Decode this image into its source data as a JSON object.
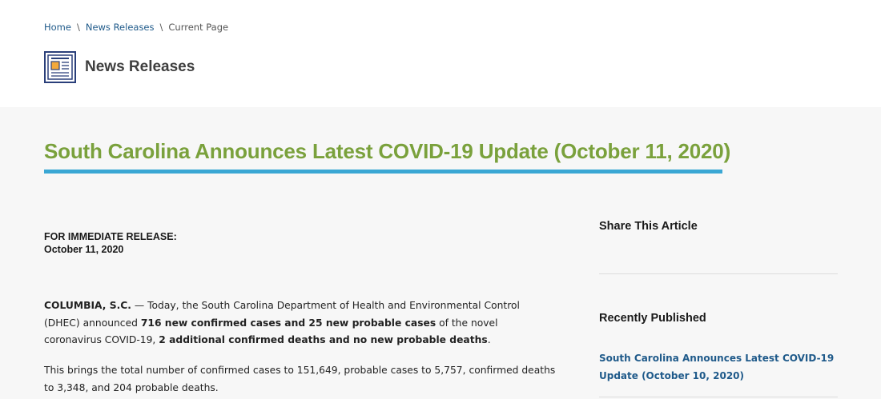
{
  "breadcrumb": {
    "home": "Home",
    "separator": "\\",
    "news_releases": "News Releases",
    "current": "Current Page"
  },
  "section": {
    "title": "News Releases",
    "icon": "newspaper-icon"
  },
  "article": {
    "title": "South Carolina Announces Latest COVID-19 Update (October 11, 2020)",
    "release_label": "FOR IMMEDIATE RELEASE:",
    "release_date": "October 11, 2020",
    "para1": {
      "dateline": "COLUMBIA, S.C.",
      "text1": " — Today, the South Carolina Department of Health and Environmental Control (DHEC) announced ",
      "bold1": "716 new confirmed cases and 25 new probable cases",
      "text2": " of the novel coronavirus COVID-19, ",
      "bold2": "2 additional confirmed deaths and no new probable deaths",
      "text3": "."
    },
    "para2": "This brings the total number of confirmed cases to 151,649, probable cases to 5,757, confirmed deaths to 3,348, and 204 probable deaths."
  },
  "sidebar": {
    "share_heading": "Share This Article",
    "recent_heading": "Recently Published",
    "recent_items": [
      "South Carolina Announces Latest COVID-19 Update (October 10, 2020)"
    ]
  },
  "colors": {
    "title_green": "#7aa13c",
    "rule_blue": "#3aa7d4",
    "link_blue": "#1f5a8a",
    "content_bg": "#f7f7f7"
  }
}
